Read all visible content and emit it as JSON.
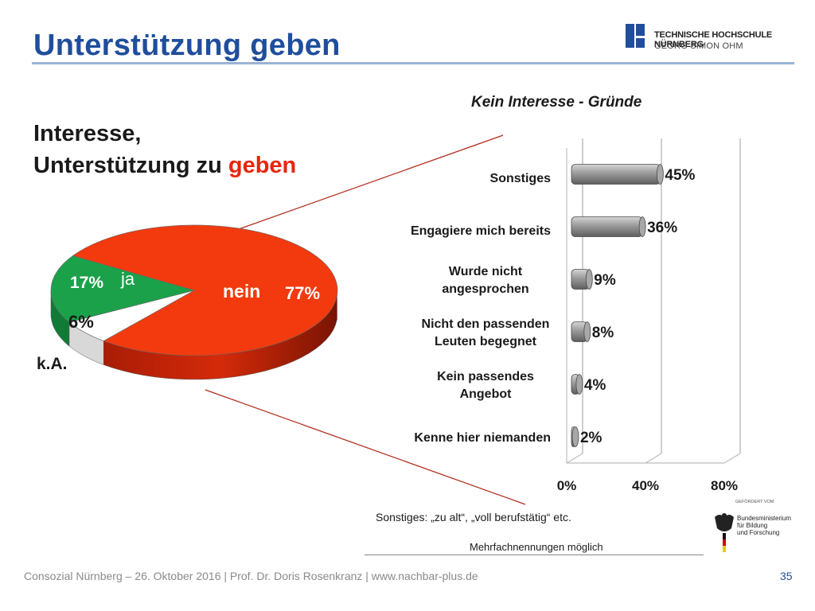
{
  "slide": {
    "title": "Unterstützung geben",
    "left_heading_line1": "Interesse,",
    "left_heading_line2_prefix": "Unterstützung zu ",
    "left_heading_line2_accent": "geben",
    "footer": "Consozial Nürnberg – 26. Oktober 2016 | Prof. Dr. Doris Rosenkranz  | www.nachbar-plus.de",
    "page_number": "35"
  },
  "logo": {
    "line1": "TECHNISCHE HOCHSCHULE NÜRNBERG",
    "line2": "GEORG SIMON OHM"
  },
  "bmbf_logo": {
    "header": "GEFÖRDERT VOM",
    "line1": "Bundesministerium",
    "line2": "für Bildung",
    "line3": "und Forschung"
  },
  "notes": {
    "sonstiges": "Sonstiges: „zu alt“, „voll berufstätig“ etc.",
    "mehrfach": "Mehrfachnennungen möglich"
  },
  "colors": {
    "title_blue": "#1f4e9c",
    "accent_red": "#e8250c",
    "pie_red": "#f23a0e",
    "pie_green": "#1aa14a",
    "pie_white": "#ffffff",
    "bar_gray": "#8c8c8c"
  },
  "chart_data": [
    {
      "type": "pie",
      "slices": [
        {
          "label": "nein",
          "value": 77,
          "value_label": "77%",
          "color": "#f23a0e"
        },
        {
          "label": "ja",
          "value": 17,
          "value_label": "17%",
          "color": "#1aa14a"
        },
        {
          "label": "k.A.",
          "value": 6,
          "value_label": "6%",
          "color": "#ffffff"
        }
      ]
    },
    {
      "type": "bar",
      "orientation": "horizontal",
      "title": "Kein Interesse - Gründe",
      "categories": [
        "Sonstiges",
        [
          "Engagiere mich bereits"
        ],
        [
          "Wurde nicht",
          "angesprochen"
        ],
        [
          "Nicht den passenden",
          "Leuten begegnet"
        ],
        [
          "Kein passendes",
          "Angebot"
        ],
        "Kenne hier niemanden"
      ],
      "values": [
        45,
        36,
        9,
        8,
        4,
        2
      ],
      "value_labels": [
        "45%",
        "36%",
        "9%",
        "8%",
        "4%",
        "2%"
      ],
      "xlim": [
        0,
        80
      ],
      "x_ticks": [
        0,
        40,
        80
      ],
      "x_tick_labels": [
        "0%",
        "40%",
        "80%"
      ],
      "grid": true
    }
  ]
}
